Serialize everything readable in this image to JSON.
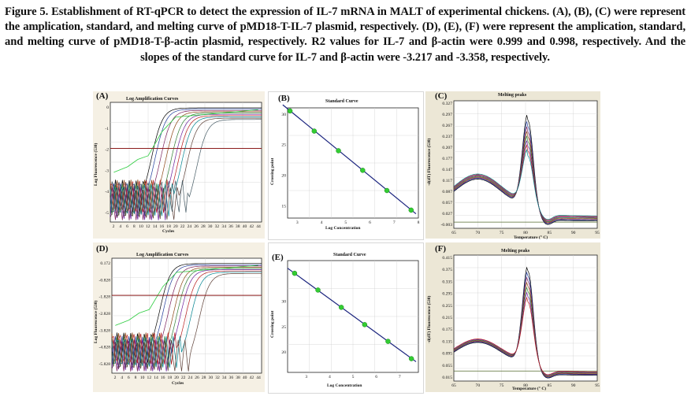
{
  "caption": {
    "lead": "Figure 5. Establishment of RT-qPCR to detect the expression of IL-7 mRNA in MALT of experimental chickens. (A), (B), (C) were represent the amplication, standard, and melting curve of pMD18-T-IL-7 plasmid, respectively. (D), (E), (F) were represent the amplication, standard, and melting curve of pMD18-T-β-actin plasmid, respectively. R2 values for IL-7 and β-actin were 0.999 and 0.998, respectively. And the slopes of the standard curve for IL-7 and β-actin were -3.217 and -3.358, respectively."
  },
  "colors": {
    "curve_line": "#1a237e",
    "std_point": "#33cc33",
    "threshold": "#8b1a1a",
    "baseline": "#556b2f"
  },
  "panels": {
    "A": {
      "label": "(A)",
      "title": "Log Amplification Curves",
      "ylabel": "Log Fluorescence (530)",
      "xlabel": "Cycles",
      "yticks": [
        "0",
        "-1",
        "-2",
        "-3",
        "-4",
        "-5"
      ],
      "xticks": [
        "2",
        "4",
        "6",
        "8",
        "10",
        "12",
        "14",
        "16",
        "18",
        "20",
        "22",
        "24",
        "26",
        "28",
        "30",
        "32",
        "34",
        "36",
        "38",
        "40",
        "42",
        "44"
      ]
    },
    "B": {
      "label": "(B)",
      "title": "Standard Curve",
      "ylabel": "Crossing point",
      "xlabel": "Log Concentration",
      "yticks": [
        "30",
        "25",
        "20",
        "15"
      ],
      "xticks": [
        "3",
        "4",
        "5",
        "6",
        "7",
        "8"
      ]
    },
    "C": {
      "label": "(C)",
      "title": "Melting peaks",
      "ylabel": "-d(dT) Fluorescence (530)",
      "xlabel": "Temperature (° C)",
      "yticks": [
        "0.327",
        "0.297",
        "0.267",
        "0.237",
        "0.207",
        "0.177",
        "0.147",
        "0.117",
        "0.087",
        "0.057",
        "0.027",
        "-0.003"
      ],
      "xticks": [
        "65",
        "70",
        "75",
        "80",
        "85",
        "90",
        "95"
      ]
    },
    "D": {
      "label": "(D)",
      "title": "Log Amplification Curves",
      "ylabel": "Log Fluorescence (530)",
      "xlabel": "Cycles",
      "yticks": [
        "0.172",
        "-0.828",
        "-1.828",
        "-2.828",
        "-3.828",
        "-4.828",
        "-5.828"
      ],
      "xticks": [
        "2",
        "4",
        "6",
        "8",
        "10",
        "12",
        "14",
        "16",
        "18",
        "20",
        "22",
        "24",
        "26",
        "28",
        "30",
        "32",
        "34",
        "36",
        "38",
        "40",
        "42",
        "44"
      ]
    },
    "E": {
      "label": "(E)",
      "title": "Standard Curve",
      "ylabel": "Crossing point",
      "xlabel": "Log Concentration",
      "yticks": [
        "30",
        "25",
        "20"
      ],
      "xticks": [
        "3",
        "4",
        "5",
        "6",
        "7"
      ]
    },
    "F": {
      "label": "(F)",
      "title": "Melting peaks",
      "ylabel": "-d(dT) Fluorescence (530)",
      "xlabel": "Temperature (° C)",
      "yticks": [
        "0.415",
        "0.375",
        "0.335",
        "0.295",
        "0.255",
        "0.215",
        "0.175",
        "0.135",
        "0.095",
        "0.055",
        "0.015"
      ],
      "xticks": [
        "65",
        "70",
        "75",
        "80",
        "85",
        "90",
        "95"
      ]
    }
  },
  "chart_data": [
    {
      "type": "line",
      "panel": "A",
      "title": "Log Amplification Curves",
      "xlabel": "Cycles",
      "ylabel": "Log Fluorescence (530)",
      "xlim": [
        1,
        45
      ],
      "ylim": [
        -6,
        0.5
      ],
      "threshold": -2,
      "series_ct": [
        13,
        14,
        15.5,
        17,
        18.5,
        19.5,
        20.5,
        21.5,
        23,
        26
      ]
    },
    {
      "type": "scatter",
      "panel": "B",
      "title": "Standard Curve",
      "xlabel": "Log Concentration",
      "ylabel": "Crossing point",
      "xlim": [
        2.6,
        8
      ],
      "ylim": [
        13,
        31
      ],
      "x": [
        2.7,
        3.7,
        4.7,
        5.7,
        6.7,
        7.7
      ],
      "y": [
        30.5,
        27.2,
        24.0,
        20.8,
        17.5,
        14.3
      ]
    },
    {
      "type": "line",
      "panel": "C",
      "title": "Melting peaks",
      "xlabel": "Temperature (° C)",
      "ylabel": "-d(dT) Fluorescence (530)",
      "xlim": [
        65,
        95
      ],
      "ylim": [
        -0.02,
        0.33
      ],
      "peak_temp": 80.5,
      "peak_heights": [
        0.317,
        0.297,
        0.28,
        0.265,
        0.25,
        0.235,
        0.22,
        0.205
      ],
      "baseline": -0.003
    },
    {
      "type": "line",
      "panel": "D",
      "title": "Log Amplification Curves",
      "xlabel": "Cycles",
      "ylabel": "Log Fluorescence (530)",
      "xlim": [
        1,
        45
      ],
      "ylim": [
        -6,
        0.5
      ],
      "threshold": -1.6,
      "series_ct": [
        15,
        16,
        17.5,
        19,
        20,
        21,
        22.5,
        24,
        26.5
      ]
    },
    {
      "type": "scatter",
      "panel": "E",
      "title": "Standard Curve",
      "xlabel": "Log Concentration",
      "ylabel": "Crossing point",
      "xlim": [
        2.2,
        7.8
      ],
      "ylim": [
        16,
        38
      ],
      "x": [
        2.5,
        3.5,
        4.5,
        5.5,
        6.5,
        7.5
      ],
      "y": [
        35.5,
        32.2,
        28.8,
        25.4,
        22.1,
        18.7
      ]
    },
    {
      "type": "line",
      "panel": "F",
      "title": "Melting peaks",
      "xlabel": "Temperature (° C)",
      "ylabel": "-d(dT) Fluorescence (530)",
      "xlim": [
        65,
        95
      ],
      "ylim": [
        -0.02,
        0.42
      ],
      "peak_temp": 80.5,
      "peak_heights": [
        0.405,
        0.385,
        0.365,
        0.345,
        0.325,
        0.305,
        0.285
      ],
      "baseline": 0.015
    }
  ]
}
